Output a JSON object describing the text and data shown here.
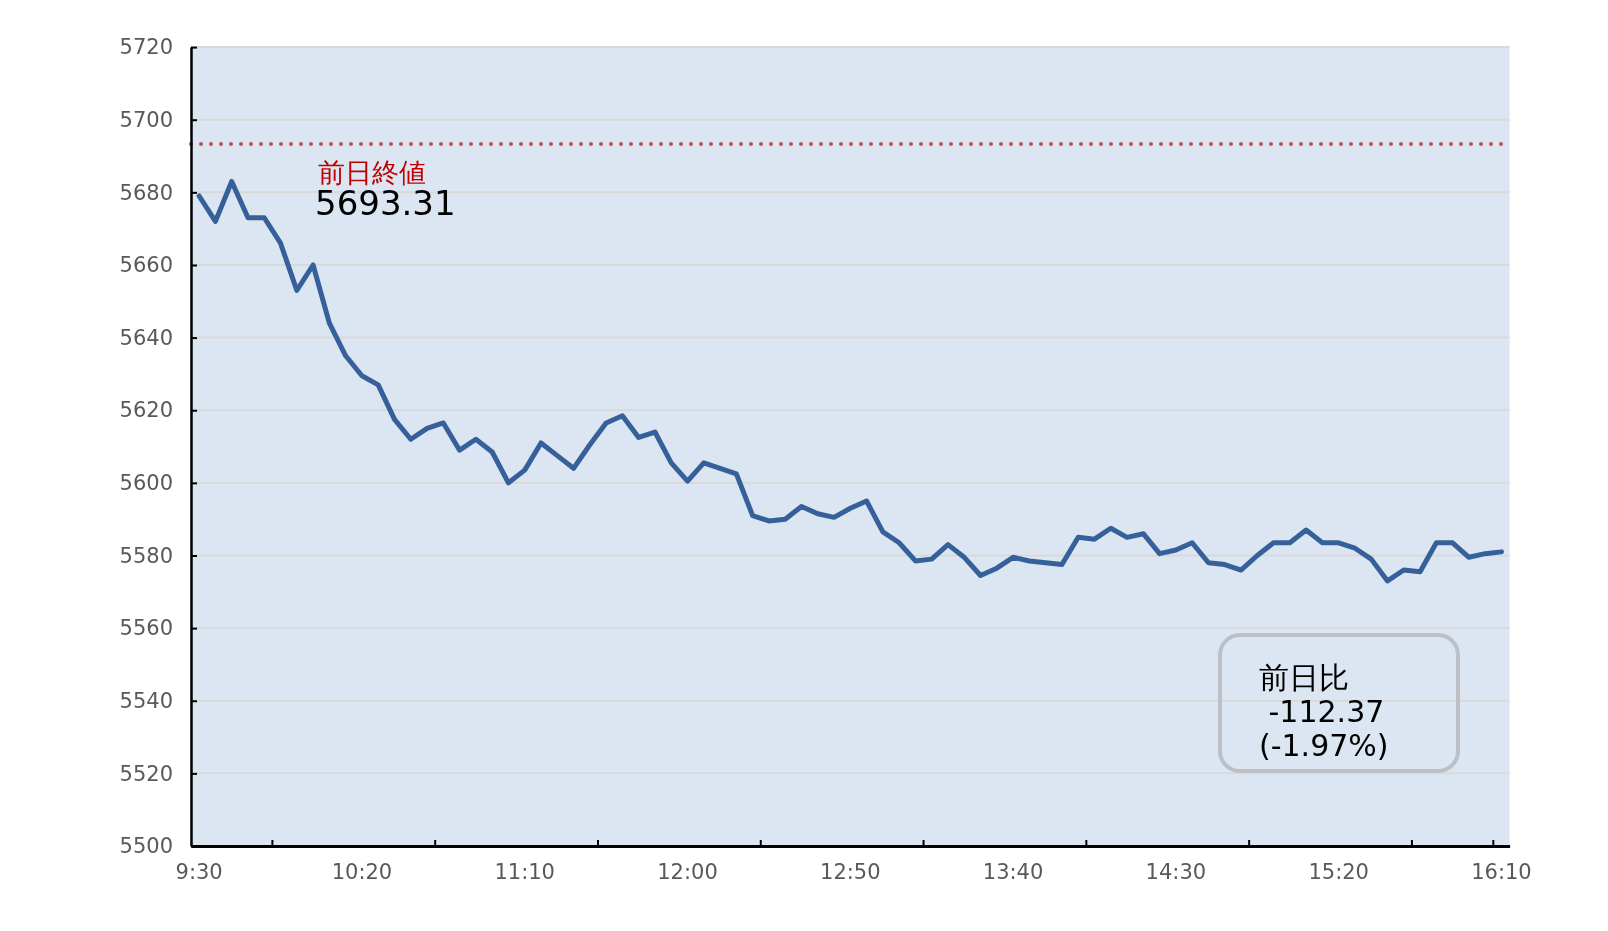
{
  "chart_data": {
    "type": "line",
    "categories": [
      "9:30",
      null,
      null,
      null,
      null,
      null,
      null,
      null,
      null,
      null,
      "10:20",
      null,
      null,
      null,
      null,
      null,
      null,
      null,
      null,
      null,
      "11:10",
      null,
      null,
      null,
      null,
      null,
      null,
      null,
      null,
      null,
      "12:00",
      null,
      null,
      null,
      null,
      null,
      null,
      null,
      null,
      null,
      "12:50",
      null,
      null,
      null,
      null,
      null,
      null,
      null,
      null,
      null,
      "13:40",
      null,
      null,
      null,
      null,
      null,
      null,
      null,
      null,
      null,
      "14:30",
      null,
      null,
      null,
      null,
      null,
      null,
      null,
      null,
      null,
      "15:20",
      null,
      null,
      null,
      null,
      null,
      null,
      null,
      null,
      null,
      "16:10"
    ],
    "series": [
      {
        "color": "#36609a",
        "values": [
          5679,
          5672,
          5683,
          5673,
          5673,
          5666,
          5653,
          5660,
          5644,
          5635,
          5629.5,
          5627,
          5617.5,
          5612,
          5615,
          5616.5,
          5609,
          5612,
          5608.5,
          5600,
          5603.5,
          5611,
          5607.5,
          5604,
          5610.5,
          5616.5,
          5618.5,
          5612.5,
          5614,
          5605.5,
          5600.5,
          5605.5,
          5604,
          5602.5,
          5591,
          5589.5,
          5590,
          5593.5,
          5591.5,
          5590.5,
          5593,
          5595,
          5586.5,
          5583.5,
          5578.5,
          5579,
          5583,
          5579.5,
          5574.5,
          5576.5,
          5579.5,
          5578.5,
          5578,
          5577.5,
          5585,
          5584.5,
          5587.5,
          5585,
          5586,
          5580.5,
          5581.5,
          5583.5,
          5578,
          5577.5,
          5576,
          5580,
          5583.5,
          5583.5,
          5587,
          5583.5,
          5583.5,
          5582,
          5579,
          5573,
          5576,
          5575.5,
          5583.5,
          5583.5,
          5579.5,
          5580.5,
          5581
        ]
      }
    ],
    "ylim": [
      5500,
      5720
    ],
    "yticks": [
      5500,
      5520,
      5540,
      5560,
      5580,
      5600,
      5620,
      5640,
      5660,
      5680,
      5700,
      5720
    ],
    "grid": "y",
    "ref_lines": [
      {
        "axis": "y",
        "value": 5693.31,
        "label": "前日終値",
        "color": "#c0504d",
        "line_style": "dotted"
      }
    ],
    "annotations": [
      {
        "text": "5693.31",
        "y": 5693.31
      },
      "前日比\n -112.37\n(-1.97%)"
    ]
  }
}
